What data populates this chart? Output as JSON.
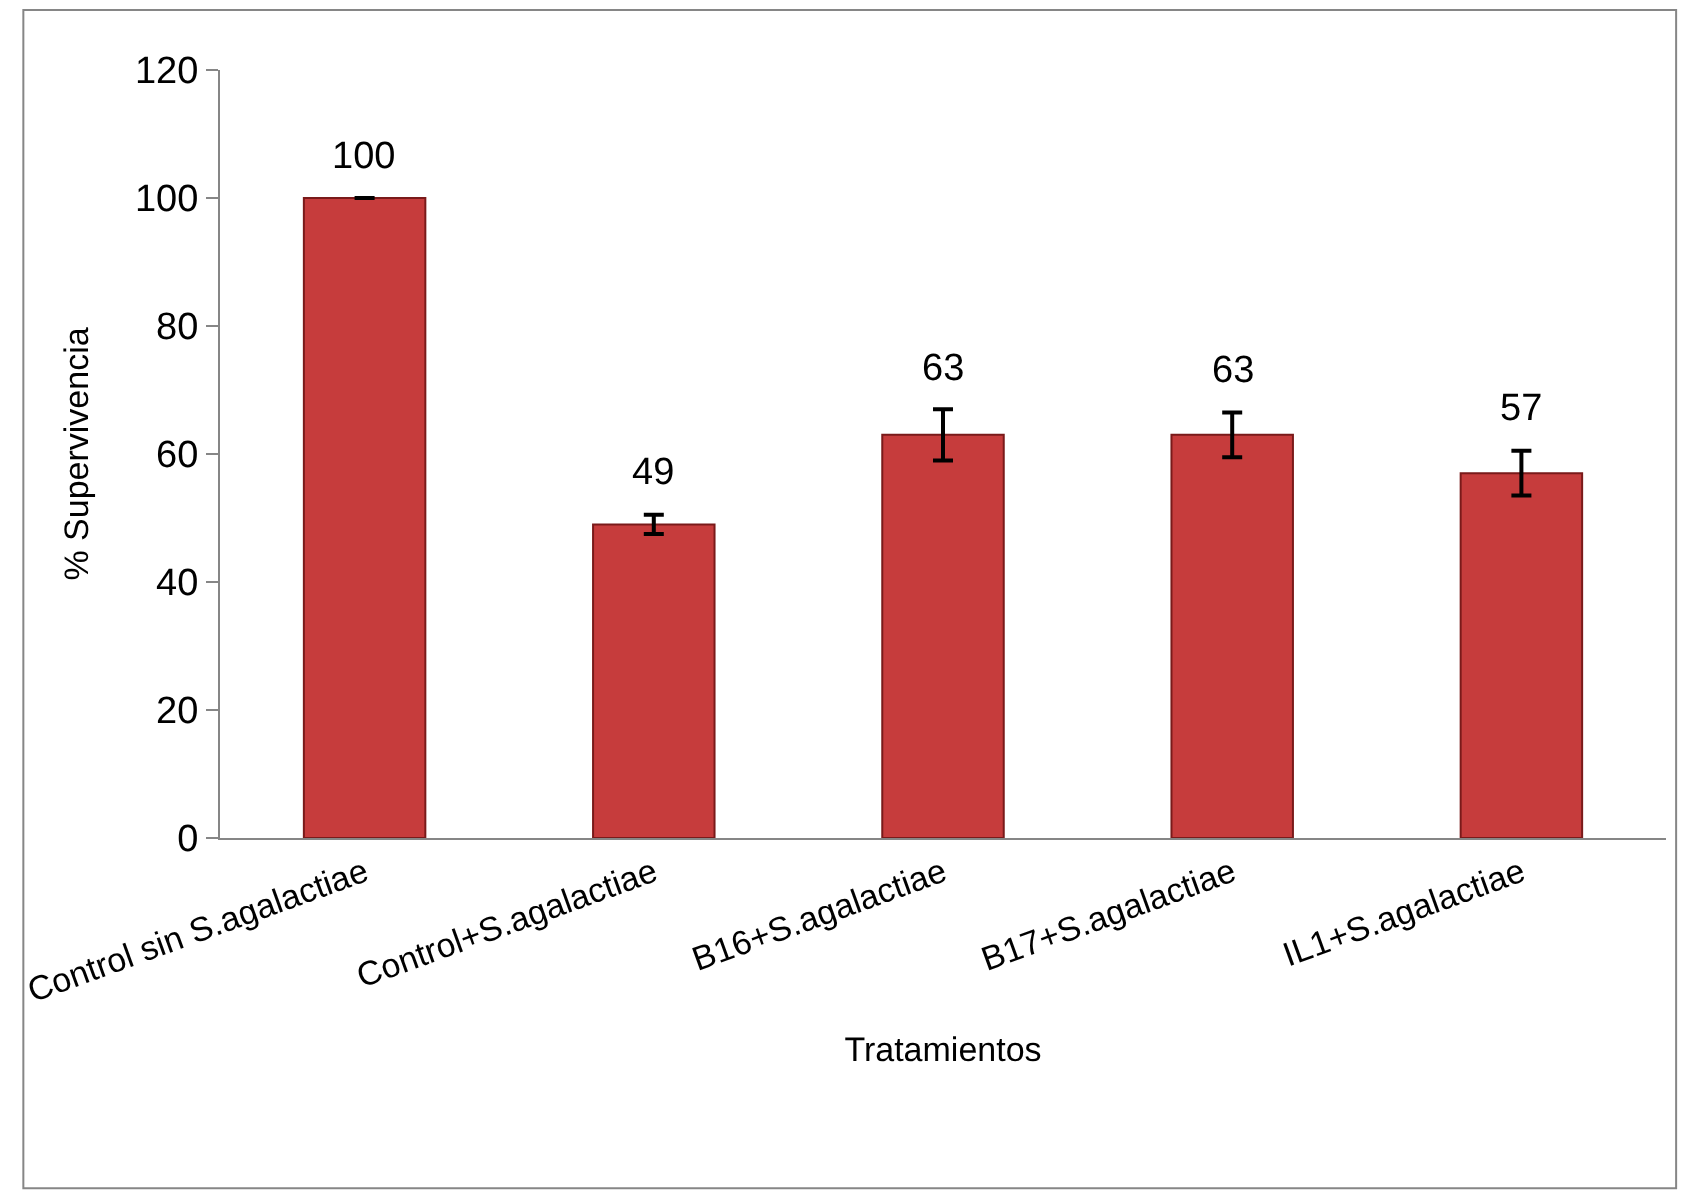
{
  "chart_data": {
    "type": "bar",
    "xlabel": "Tratamientos",
    "ylabel": "% Supervivencia",
    "categories": [
      "Control sin S.agalactiae",
      "Control+S.agalactiae",
      "B16+S.agalactiae",
      "B17+S.agalactiae",
      "IL1+S.agalactiae"
    ],
    "values": [
      100,
      49,
      63,
      63,
      57
    ],
    "errors": [
      null,
      1.5,
      4,
      3.5,
      3.5
    ],
    "color": "#c63c3c",
    "ylim": [
      0,
      120
    ],
    "yticks": [
      0,
      20,
      40,
      60,
      80,
      100,
      120
    ],
    "legend": false,
    "data_labels": true
  }
}
